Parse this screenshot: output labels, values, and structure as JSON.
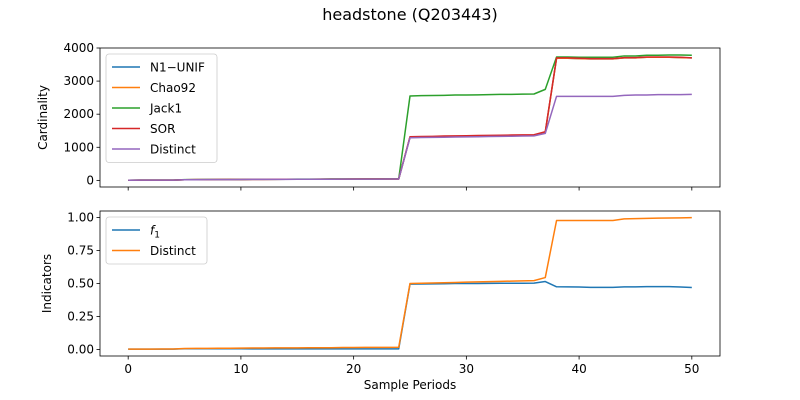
{
  "figure": {
    "title": "headstone (Q203443)"
  },
  "chart_data": [
    {
      "type": "line",
      "ylabel": "Cardinality",
      "xlabel": "",
      "xlim": [
        -2.5,
        52.5
      ],
      "ylim": [
        -200,
        4000
      ],
      "xticks": [
        0,
        10,
        20,
        30,
        40,
        50
      ],
      "show_xticklabels": false,
      "yticks": [
        0,
        1000,
        2000,
        3000,
        4000
      ],
      "grid": false,
      "legend": "top-left",
      "x": [
        0,
        1,
        2,
        3,
        4,
        5,
        6,
        7,
        8,
        9,
        10,
        11,
        12,
        13,
        14,
        15,
        16,
        17,
        18,
        19,
        20,
        21,
        22,
        23,
        24,
        25,
        26,
        27,
        28,
        29,
        30,
        31,
        32,
        33,
        34,
        35,
        36,
        37,
        38,
        39,
        40,
        41,
        42,
        43,
        44,
        45,
        46,
        47,
        48,
        49,
        50
      ],
      "series": [
        {
          "name": "N1−UNIF",
          "color": "#1f77b4",
          "values": [
            5,
            6,
            6,
            7,
            8,
            20,
            22,
            23,
            24,
            25,
            26,
            30,
            31,
            32,
            33,
            34,
            35,
            36,
            37,
            38,
            39,
            40,
            40,
            41,
            42,
            1300,
            1305,
            1310,
            1320,
            1325,
            1330,
            1335,
            1340,
            1345,
            1350,
            1355,
            1360,
            1450,
            3690,
            3690,
            3680,
            3670,
            3670,
            3670,
            3700,
            3700,
            3720,
            3720,
            3720,
            3710,
            3700
          ]
        },
        {
          "name": "Chao92",
          "color": "#ff7f0e",
          "values": [
            5,
            6,
            6,
            7,
            8,
            20,
            22,
            23,
            24,
            25,
            26,
            30,
            31,
            32,
            33,
            34,
            35,
            36,
            37,
            38,
            39,
            40,
            40,
            41,
            42,
            1300,
            1305,
            1310,
            1320,
            1325,
            1330,
            1335,
            1340,
            1345,
            1350,
            1355,
            1360,
            1450,
            3690,
            3690,
            3680,
            3670,
            3670,
            3670,
            3700,
            3700,
            3720,
            3720,
            3720,
            3710,
            3700
          ]
        },
        {
          "name": "Jack1",
          "color": "#2ca02c",
          "values": [
            5,
            6,
            6,
            8,
            9,
            22,
            24,
            25,
            26,
            27,
            28,
            33,
            34,
            35,
            36,
            37,
            38,
            39,
            40,
            41,
            42,
            43,
            43,
            44,
            45,
            2550,
            2560,
            2565,
            2570,
            2580,
            2580,
            2585,
            2590,
            2600,
            2600,
            2605,
            2610,
            2750,
            3730,
            3730,
            3720,
            3720,
            3720,
            3720,
            3760,
            3760,
            3780,
            3780,
            3790,
            3790,
            3780
          ]
        },
        {
          "name": "SOR",
          "color": "#d62728",
          "values": [
            5,
            6,
            6,
            7,
            8,
            21,
            23,
            24,
            25,
            26,
            27,
            31,
            32,
            33,
            34,
            35,
            36,
            37,
            38,
            39,
            40,
            41,
            41,
            42,
            43,
            1320,
            1325,
            1330,
            1340,
            1345,
            1350,
            1355,
            1360,
            1365,
            1370,
            1375,
            1380,
            1470,
            3700,
            3700,
            3690,
            3680,
            3680,
            3680,
            3710,
            3710,
            3730,
            3730,
            3730,
            3720,
            3700
          ]
        },
        {
          "name": "Distinct",
          "color": "#9467bd",
          "values": [
            5,
            6,
            6,
            7,
            8,
            19,
            21,
            22,
            23,
            24,
            25,
            29,
            30,
            31,
            32,
            33,
            34,
            35,
            36,
            37,
            38,
            39,
            39,
            40,
            41,
            1290,
            1295,
            1300,
            1305,
            1310,
            1315,
            1320,
            1325,
            1330,
            1335,
            1340,
            1345,
            1420,
            2540,
            2540,
            2540,
            2540,
            2540,
            2540,
            2570,
            2580,
            2580,
            2590,
            2590,
            2590,
            2600
          ]
        }
      ]
    },
    {
      "type": "line",
      "ylabel": "Indicators",
      "xlabel": "Sample Periods",
      "xlim": [
        -2.5,
        52.5
      ],
      "ylim": [
        -0.05,
        1.05
      ],
      "xticks": [
        0,
        10,
        20,
        30,
        40,
        50
      ],
      "show_xticklabels": true,
      "yticks": [
        0.0,
        0.25,
        0.5,
        0.75,
        1.0
      ],
      "ytick_labels": [
        "0.00",
        "0.25",
        "0.50",
        "0.75",
        "1.00"
      ],
      "grid": false,
      "legend": "top-left",
      "x": [
        0,
        1,
        2,
        3,
        4,
        5,
        6,
        7,
        8,
        9,
        10,
        11,
        12,
        13,
        14,
        15,
        16,
        17,
        18,
        19,
        20,
        21,
        22,
        23,
        24,
        25,
        26,
        27,
        28,
        29,
        30,
        31,
        32,
        33,
        34,
        35,
        36,
        37,
        38,
        39,
        40,
        41,
        42,
        43,
        44,
        45,
        46,
        47,
        48,
        49,
        50
      ],
      "series": [
        {
          "name": "f1",
          "name_base": "f",
          "name_sub": "1",
          "color": "#1f77b4",
          "values": [
            0.002,
            0.002,
            0.002,
            0.002,
            0.002,
            0.005,
            0.005,
            0.005,
            0.005,
            0.005,
            0.005,
            0.004,
            0.004,
            0.004,
            0.004,
            0.004,
            0.004,
            0.004,
            0.004,
            0.004,
            0.004,
            0.004,
            0.004,
            0.004,
            0.004,
            0.495,
            0.496,
            0.497,
            0.498,
            0.5,
            0.5,
            0.5,
            0.501,
            0.502,
            0.502,
            0.502,
            0.503,
            0.515,
            0.475,
            0.474,
            0.473,
            0.471,
            0.471,
            0.471,
            0.474,
            0.474,
            0.476,
            0.476,
            0.476,
            0.473,
            0.47
          ]
        },
        {
          "name": "Distinct",
          "color": "#ff7f0e",
          "values": [
            0.002,
            0.002,
            0.002,
            0.003,
            0.003,
            0.007,
            0.008,
            0.008,
            0.009,
            0.009,
            0.01,
            0.011,
            0.011,
            0.012,
            0.012,
            0.012,
            0.013,
            0.013,
            0.013,
            0.014,
            0.014,
            0.015,
            0.015,
            0.015,
            0.016,
            0.5,
            0.502,
            0.504,
            0.506,
            0.508,
            0.51,
            0.512,
            0.514,
            0.516,
            0.518,
            0.52,
            0.522,
            0.545,
            0.978,
            0.978,
            0.978,
            0.978,
            0.978,
            0.978,
            0.99,
            0.992,
            0.994,
            0.996,
            0.997,
            0.998,
            1.0
          ]
        }
      ]
    }
  ]
}
